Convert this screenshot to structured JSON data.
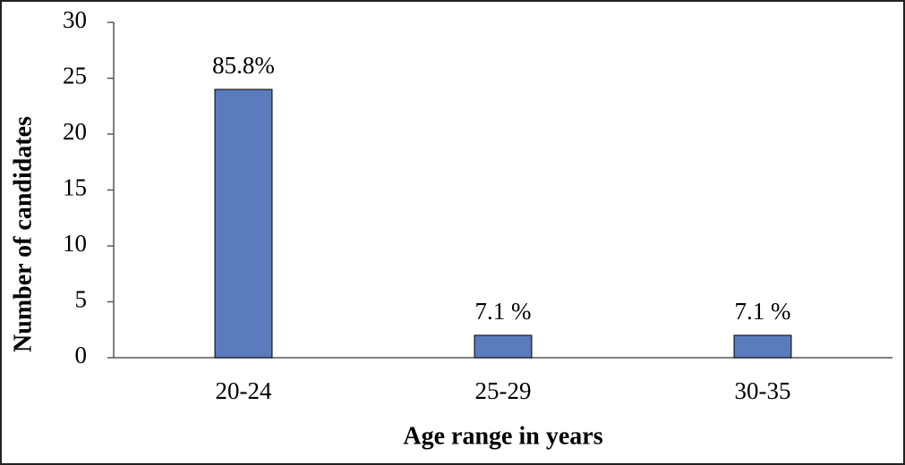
{
  "chart_data": {
    "type": "bar",
    "x_label": "Age range in years",
    "y_label": "Number of candidates",
    "categories": [
      "20-24",
      "25-29",
      "30-35"
    ],
    "values": [
      24,
      2,
      2
    ],
    "annotations": [
      "85.8%",
      "7.1 %",
      "7.1 %"
    ],
    "color": "#5b7bbf",
    "ylim": [
      0,
      30
    ],
    "yticks": [
      0,
      5,
      10,
      15,
      20,
      25,
      30
    ],
    "grid": false
  }
}
